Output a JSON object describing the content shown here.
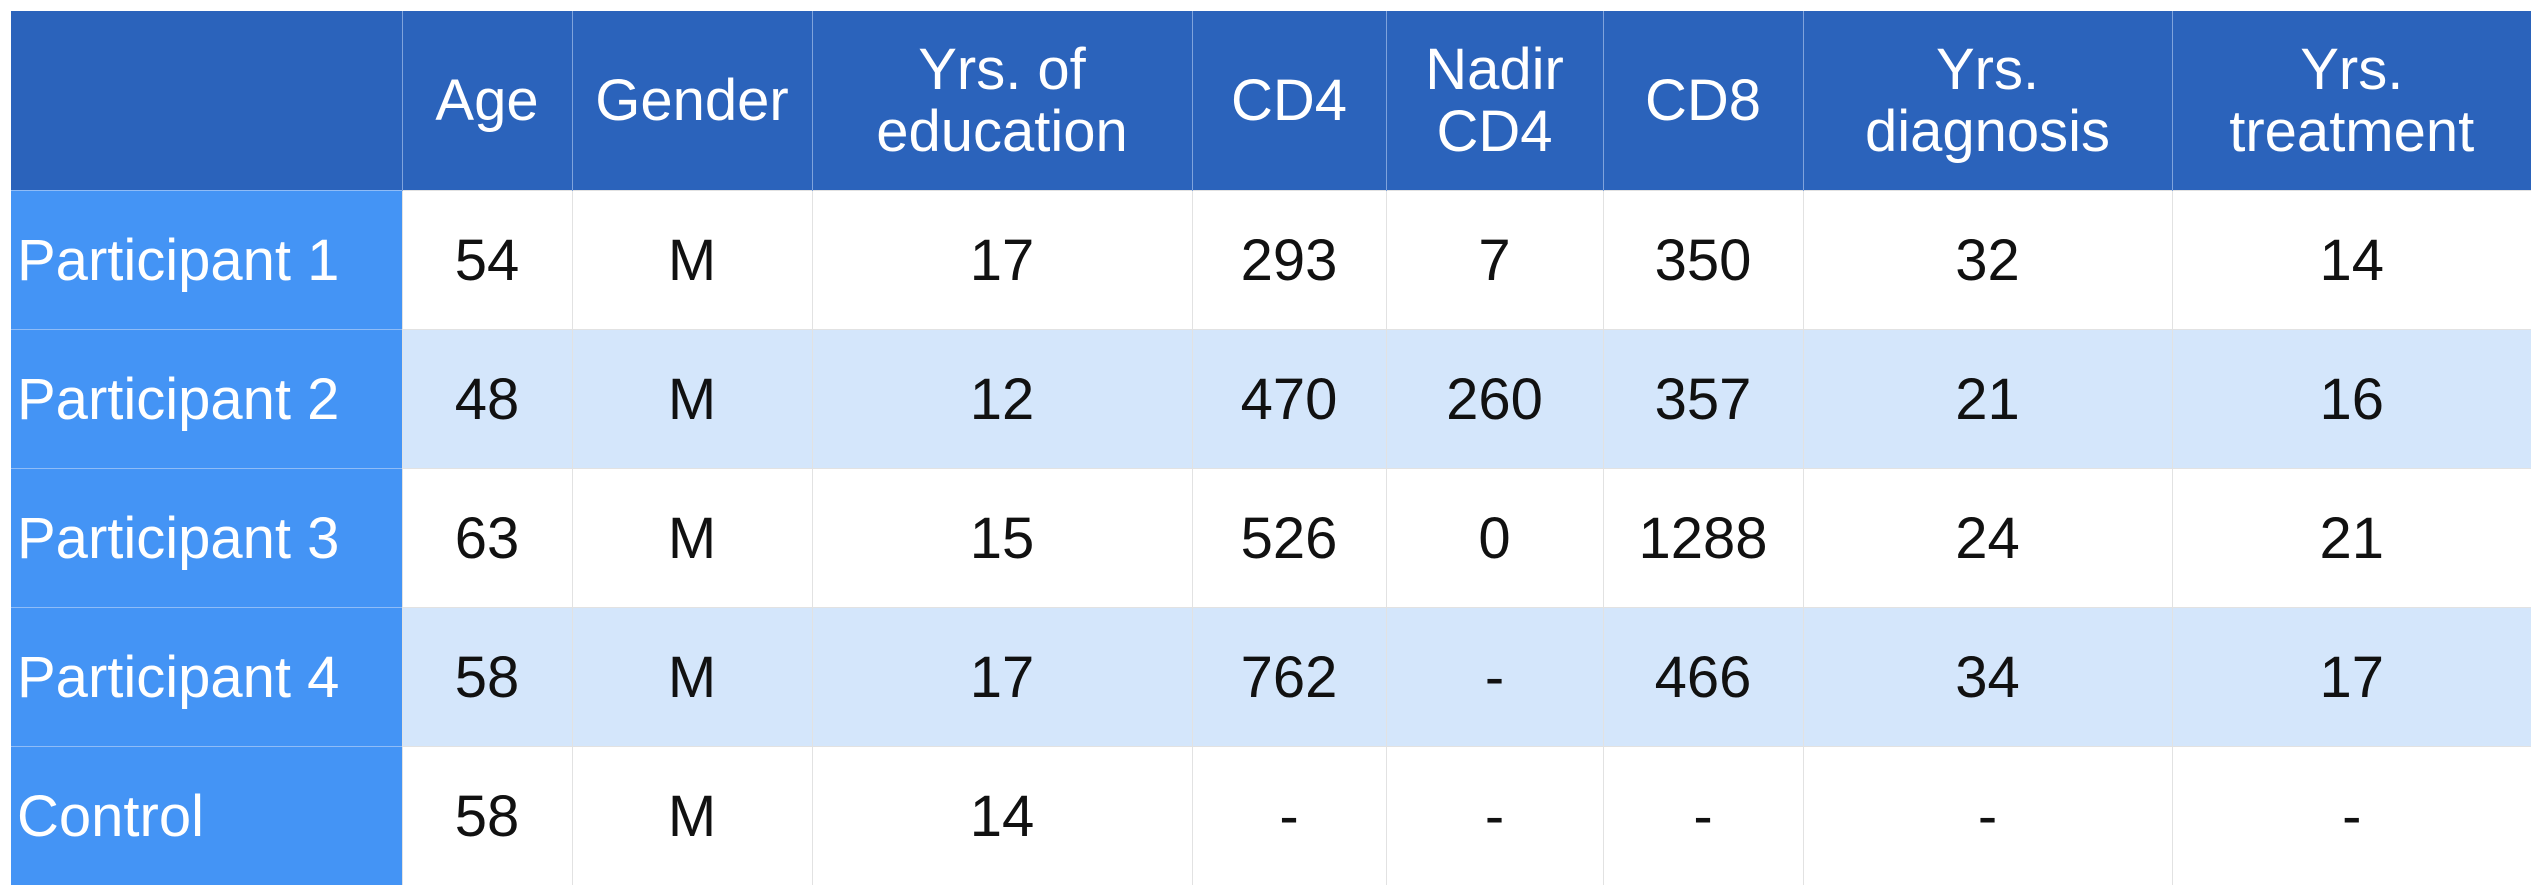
{
  "table": {
    "columns": [
      "Age",
      "Gender",
      "Yrs. of\neducation",
      "CD4",
      "Nadir\nCD4",
      "CD8",
      "Yrs.\ndiagnosis",
      "Yrs.\ntreatment"
    ],
    "rows": [
      {
        "label": "Participant 1",
        "cells": [
          "54",
          "M",
          "17",
          "293",
          "7",
          "350",
          "32",
          "14"
        ]
      },
      {
        "label": "Participant 2",
        "cells": [
          "48",
          "M",
          "12",
          "470",
          "260",
          "357",
          "21",
          "16"
        ]
      },
      {
        "label": "Participant 3",
        "cells": [
          "63",
          "M",
          "15",
          "526",
          "0",
          "1288",
          "24",
          "21"
        ]
      },
      {
        "label": "Participant 4",
        "cells": [
          "58",
          "M",
          "17",
          "762",
          "-",
          "466",
          "34",
          "17"
        ]
      },
      {
        "label": "Control",
        "cells": [
          "58",
          "M",
          "14",
          "-",
          "-",
          "-",
          "-",
          "-"
        ]
      }
    ]
  }
}
